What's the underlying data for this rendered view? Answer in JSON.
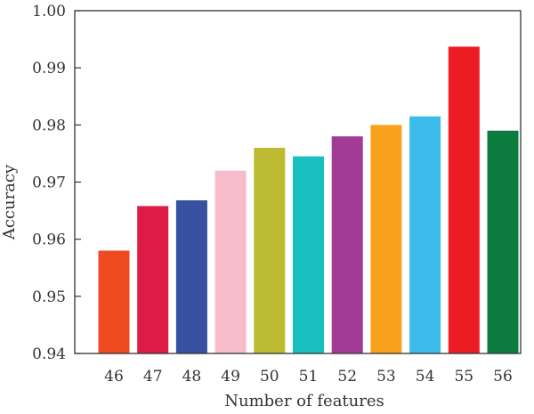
{
  "chart_data": {
    "type": "bar",
    "title": "",
    "xlabel": "Number of features",
    "ylabel": "Accuracy",
    "categories": [
      "46",
      "47",
      "48",
      "49",
      "50",
      "51",
      "52",
      "53",
      "54",
      "55",
      "56"
    ],
    "values": [
      0.958,
      0.9658,
      0.9668,
      0.972,
      0.976,
      0.9745,
      0.978,
      0.98,
      0.9815,
      0.9937,
      0.979
    ],
    "colors": [
      "#ee4b23",
      "#de1b44",
      "#37509f",
      "#f7bccb",
      "#bdbb31",
      "#1abfbf",
      "#a13b95",
      "#f9a11b",
      "#3cbcea",
      "#ec1c24",
      "#0c7c3e"
    ],
    "ylim": [
      0.94,
      1.0
    ],
    "yticks": [
      "0.94",
      "0.95",
      "0.96",
      "0.97",
      "0.98",
      "0.99",
      "1.00"
    ],
    "grid": false,
    "legend": "none"
  }
}
